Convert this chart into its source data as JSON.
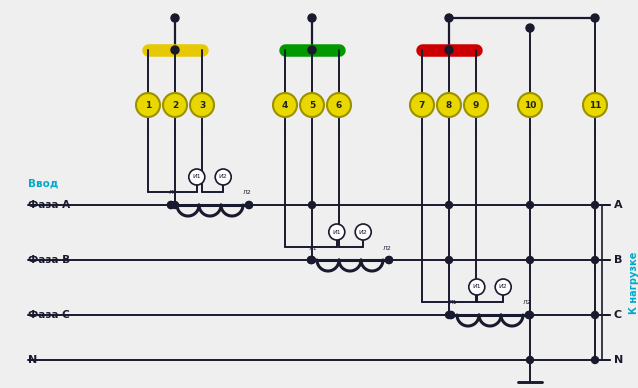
{
  "bg_color": "#efefef",
  "line_color": "#1a1a2e",
  "bus_yellow": "#e8c800",
  "bus_green": "#009900",
  "bus_red": "#cc0000",
  "terminal_color": "#e8d800",
  "terminal_border": "#9a9000",
  "node_color": "#1a1a2e",
  "label_color_vvod": "#00aacc",
  "label_color_nagruzka": "#00aacc",
  "vvod_label": "Ввод",
  "faza_a": "Фаза А",
  "faza_b": "Фаза В",
  "faza_c": "Фаза С",
  "neutral_label": "N",
  "right_a": "А",
  "right_b": "В",
  "right_c": "С",
  "right_n": "N",
  "nagruzka": "К нагрузке",
  "terminal_labels": [
    "1",
    "2",
    "3",
    "4",
    "5",
    "6",
    "7",
    "8",
    "9",
    "10",
    "11"
  ],
  "lw": 1.4,
  "lw_bus": 5.0,
  "lw_ct": 2.2
}
